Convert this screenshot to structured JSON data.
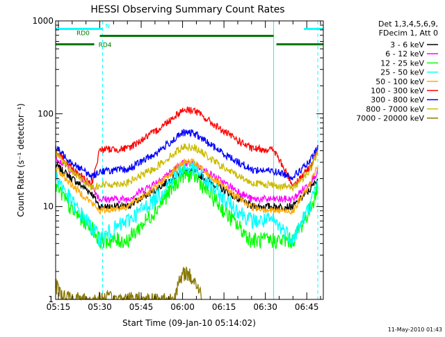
{
  "chart_data": {
    "type": "line",
    "title": "HESSI Observing Summary Count Rates",
    "xlabel": "Start Time (09-Jan-10 05:14:02)",
    "ylabel": "Count Rate (s⁻¹ detector⁻¹)",
    "ylim": [
      1,
      1000
    ],
    "yscale": "log",
    "y_ticks": [
      1,
      10,
      100,
      1000
    ],
    "y_tick_labels": [
      "1",
      "10",
      "100",
      "1000"
    ],
    "xlim": [
      "05:14",
      "06:51"
    ],
    "x_ticks": [
      "05:15",
      "05:30",
      "05:45",
      "06:00",
      "06:15",
      "06:30",
      "06:45"
    ],
    "x_tick_labels": [
      "05:15",
      "05:30",
      "05:45",
      "06:00",
      "06:15",
      "06:30",
      "06:45"
    ],
    "grid": false,
    "legend_position": "right",
    "legend_header": [
      "Det 1,3,4,5,6,9,",
      "FDecim 1, Att 0"
    ],
    "footer_timestamp": "11-May-2010 01:43",
    "series": [
      {
        "name": "3 - 6 keV",
        "color": "#000000",
        "x": [
          "05:14",
          "05:20",
          "05:27",
          "05:30",
          "05:40",
          "05:50",
          "06:00",
          "06:04",
          "06:15",
          "06:25",
          "06:33",
          "06:40",
          "06:46",
          "06:49"
        ],
        "y": [
          28,
          20,
          14,
          10,
          10,
          15,
          24,
          24,
          15,
          10,
          10,
          10,
          15,
          20
        ]
      },
      {
        "name": "6 - 12 keV",
        "color": "#ff00ff",
        "x": [
          "05:14",
          "05:20",
          "05:27",
          "05:30",
          "05:40",
          "05:50",
          "06:00",
          "06:04",
          "06:15",
          "06:25",
          "06:33",
          "06:40",
          "06:46",
          "06:49"
        ],
        "y": [
          34,
          24,
          17,
          12,
          12,
          18,
          29,
          29,
          18,
          12,
          12,
          12,
          18,
          24
        ]
      },
      {
        "name": "12 - 25 keV",
        "color": "#00ff00",
        "x": [
          "05:14",
          "05:20",
          "05:27",
          "05:30",
          "05:40",
          "05:50",
          "06:00",
          "06:04",
          "06:15",
          "06:25",
          "06:33",
          "06:40",
          "06:46",
          "06:49"
        ],
        "y": [
          17,
          9,
          6,
          4.3,
          4.3,
          9,
          22,
          22,
          9,
          4.3,
          4.3,
          4.3,
          9,
          16
        ]
      },
      {
        "name": "25 - 50 keV",
        "color": "#00ffff",
        "x": [
          "05:14",
          "05:20",
          "05:27",
          "05:30",
          "05:40",
          "05:50",
          "06:00",
          "06:04",
          "06:15",
          "06:25",
          "06:33",
          "06:40",
          "06:46",
          "06:49"
        ],
        "y": [
          22,
          11,
          6,
          4.5,
          7,
          12,
          26,
          26,
          12,
          7,
          7,
          4.5,
          10,
          18
        ]
      },
      {
        "name": "50 - 100 keV",
        "color": "#ffaa00",
        "x": [
          "05:14",
          "05:20",
          "05:27",
          "05:30",
          "05:40",
          "05:50",
          "06:00",
          "06:04",
          "06:15",
          "06:25",
          "06:33",
          "06:40",
          "06:46",
          "06:49"
        ],
        "y": [
          26,
          17,
          11,
          9,
          10,
          16,
          30,
          30,
          16,
          10,
          9,
          9,
          17,
          27
        ]
      },
      {
        "name": "100 - 300 keV",
        "color": "#ff0000",
        "x": [
          "05:14",
          "05:20",
          "05:27",
          "05:30",
          "05:40",
          "05:50",
          "06:00",
          "06:04",
          "06:15",
          "06:25",
          "06:33",
          "06:40",
          "06:46",
          "06:49"
        ],
        "y": [
          40,
          26,
          17,
          41,
          42,
          64,
          110,
          110,
          64,
          42,
          41,
          17,
          26,
          40
        ]
      },
      {
        "name": "300 - 800 keV",
        "color": "#0000ff",
        "x": [
          "05:14",
          "05:20",
          "05:27",
          "05:30",
          "05:40",
          "05:50",
          "06:00",
          "06:04",
          "06:15",
          "06:25",
          "06:33",
          "06:40",
          "06:46",
          "06:49"
        ],
        "y": [
          43,
          30,
          21,
          24,
          25,
          37,
          62,
          62,
          37,
          25,
          24,
          21,
          30,
          43
        ]
      },
      {
        "name": "800 - 7000 keV",
        "color": "#ccbb00",
        "x": [
          "05:14",
          "05:20",
          "05:27",
          "05:30",
          "05:40",
          "05:50",
          "06:00",
          "06:04",
          "06:15",
          "06:25",
          "06:33",
          "06:40",
          "06:46",
          "06:49"
        ],
        "y": [
          38,
          24,
          16,
          17,
          18,
          26,
          44,
          44,
          26,
          18,
          17,
          16,
          24,
          38
        ]
      },
      {
        "name": "7000 - 20000 keV",
        "color": "#887700",
        "x": [
          "05:14",
          "05:18",
          "05:56",
          "06:01",
          "06:05",
          "06:07"
        ],
        "y": [
          1.4,
          1,
          1,
          2,
          1.5,
          1
        ]
      }
    ],
    "annotations": {
      "flags": [
        {
          "label": "N",
          "color": "#00ffff",
          "segments": [
            [
              "05:14",
              "05:31"
            ],
            [
              "06:44",
              "06:51"
            ]
          ],
          "level": 820
        },
        {
          "label": "RD0",
          "color": "#007700",
          "segments": [
            [
              "05:30",
              "06:33"
            ]
          ],
          "level": 690
        },
        {
          "label": "RD4",
          "color": "#007700",
          "segments": [
            [
              "05:14",
              "05:28"
            ],
            [
              "06:34",
              "06:51"
            ]
          ],
          "level": 560
        }
      ],
      "vertical_lines": [
        {
          "x": "05:14",
          "color": "#00ffff",
          "style": "solid"
        },
        {
          "x": "05:31",
          "color": "#00ffff",
          "style": "dashed"
        },
        {
          "x": "06:33",
          "color": "#00ffff",
          "style": "solid"
        },
        {
          "x": "06:49",
          "color": "#00ffff",
          "style": "dashed"
        }
      ]
    }
  }
}
